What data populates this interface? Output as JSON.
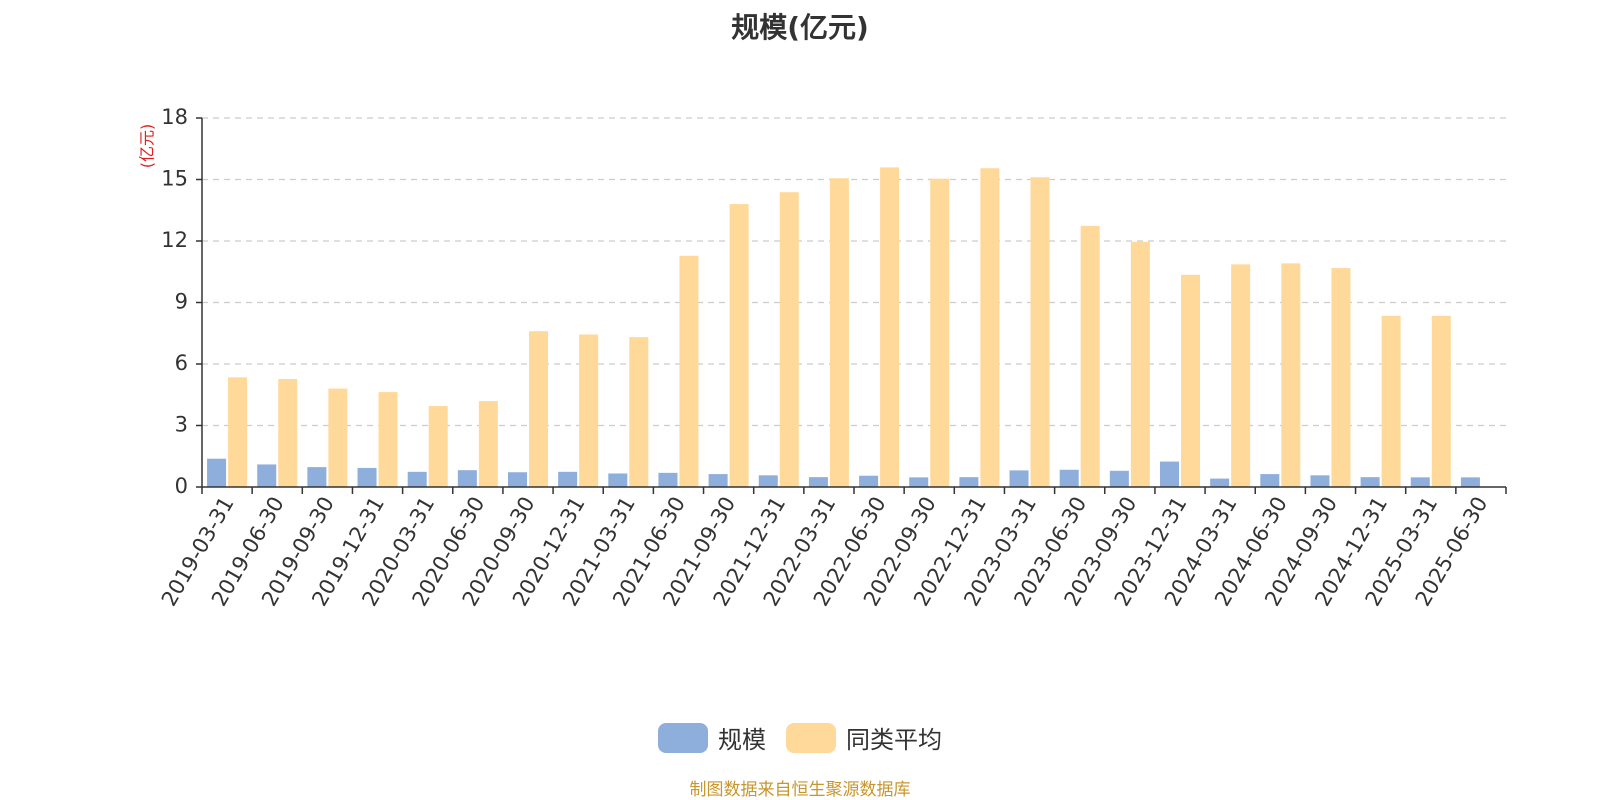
{
  "chart_data": {
    "type": "bar",
    "title": "规模(亿元)",
    "ylabel": "(亿元)",
    "xlabel": "",
    "ylim": [
      0,
      18
    ],
    "yticks": [
      0,
      3,
      6,
      9,
      12,
      15,
      18
    ],
    "grid": "horizontal-dashed",
    "legend_position": "bottom",
    "categories": [
      "2019-03-31",
      "2019-06-30",
      "2019-09-30",
      "2019-12-31",
      "2020-03-31",
      "2020-06-30",
      "2020-09-30",
      "2020-12-31",
      "2021-03-31",
      "2021-06-30",
      "2021-09-30",
      "2021-12-31",
      "2022-03-31",
      "2022-06-30",
      "2022-09-30",
      "2022-12-31",
      "2023-03-31",
      "2023-06-30",
      "2023-09-30",
      "2023-12-31",
      "2024-03-31",
      "2024-06-30",
      "2024-09-30",
      "2024-12-31",
      "2025-03-31",
      "2025-06-30"
    ],
    "series": [
      {
        "name": "规模",
        "color": "#8eaedc",
        "values": [
          1.38,
          1.1,
          0.97,
          0.93,
          0.74,
          0.82,
          0.72,
          0.74,
          0.66,
          0.69,
          0.63,
          0.57,
          0.48,
          0.55,
          0.47,
          0.48,
          0.81,
          0.84,
          0.79,
          1.24,
          0.41,
          0.63,
          0.57,
          0.48,
          0.47,
          0.47
        ]
      },
      {
        "name": "同类平均",
        "color": "#ffd99a",
        "values": [
          5.35,
          5.27,
          4.8,
          4.63,
          3.95,
          4.19,
          7.6,
          7.44,
          7.31,
          11.28,
          13.8,
          14.38,
          15.06,
          15.59,
          15.04,
          15.55,
          15.11,
          12.74,
          11.96,
          10.35,
          10.86,
          10.91,
          10.68,
          8.35,
          8.35,
          null
        ]
      }
    ]
  },
  "source_note": "制图数据来自恒生聚源数据库"
}
